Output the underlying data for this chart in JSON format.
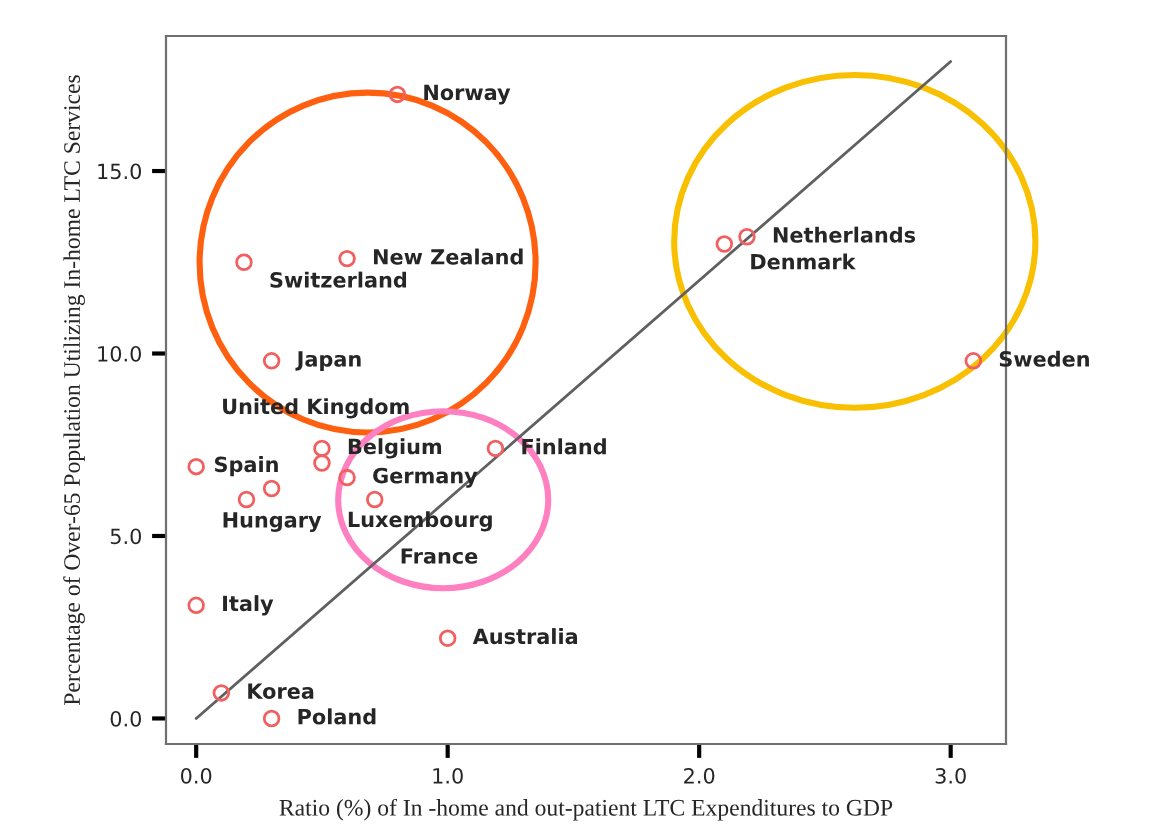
{
  "chart_data": {
    "type": "scatter",
    "xlabel": "Ratio (%) of In -home and out-patient LTC Expenditures to GDP",
    "ylabel": "Percentage of Over-65 Population Utilizing In-home LTC Services",
    "xlim": [
      -0.12,
      3.22
    ],
    "ylim": [
      -0.7,
      18.7
    ],
    "xticks": [
      {
        "value": 0,
        "label": "0.0"
      },
      {
        "value": 1,
        "label": "1.0"
      },
      {
        "value": 2,
        "label": "2.0"
      },
      {
        "value": 3,
        "label": "3.0"
      }
    ],
    "yticks": [
      {
        "value": 0,
        "label": "0.0"
      },
      {
        "value": 5,
        "label": "5.0"
      },
      {
        "value": 10,
        "label": "10.0"
      },
      {
        "value": 15,
        "label": "15.0"
      }
    ],
    "grid": false,
    "series": [
      {
        "marker": "circle",
        "color": "#f06060",
        "x": [
          0.8,
          0.19,
          0.6,
          0.3,
          2.19,
          2.1,
          3.09,
          0.5,
          1.19,
          0.0,
          0.5,
          0.3,
          0.2,
          0.6,
          0.71,
          0.0,
          1.0,
          0.1,
          0.3
        ],
        "values": [
          17.1,
          12.5,
          12.6,
          9.8,
          13.2,
          13.0,
          9.8,
          7.4,
          7.4,
          6.9,
          7.0,
          6.3,
          6.0,
          6.6,
          6.0,
          3.1,
          2.2,
          0.7,
          0.0
        ]
      },
      {
        "type": "line",
        "color": "#606060",
        "x": [
          0.0,
          3.0
        ],
        "values": [
          0.0,
          18.0
        ]
      }
    ],
    "annotations": [
      {
        "text": "Norway",
        "x": 0.8,
        "y": 17.1
      },
      {
        "text": "Switzerland",
        "x": 0.19,
        "y": 12.5
      },
      {
        "text": "New Zealand",
        "x": 0.6,
        "y": 12.6
      },
      {
        "text": "Japan",
        "x": 0.3,
        "y": 9.8
      },
      {
        "text": "Netherlands",
        "x": 2.19,
        "y": 13.2
      },
      {
        "text": "Denmark",
        "x": 2.1,
        "y": 13.0
      },
      {
        "text": "Sweden",
        "x": 3.09,
        "y": 9.8
      },
      {
        "text": "Belgium",
        "x": 0.5,
        "y": 7.4
      },
      {
        "text": "Finland",
        "x": 1.19,
        "y": 7.4
      },
      {
        "text": "United Kingdom",
        "x": 0.0,
        "y": 6.9
      },
      {
        "text": "Luxembourg",
        "x": 0.5,
        "y": 7.0
      },
      {
        "text": "Hungary",
        "x": 0.3,
        "y": 6.3
      },
      {
        "text": "Spain",
        "x": 0.2,
        "y": 6.0
      },
      {
        "text": "Germany",
        "x": 0.6,
        "y": 6.6
      },
      {
        "text": "France",
        "x": 0.71,
        "y": 6.0
      },
      {
        "text": "Italy",
        "x": 0.0,
        "y": 3.1
      },
      {
        "text": "Australia",
        "x": 1.0,
        "y": 2.2
      },
      {
        "text": "Korea",
        "x": 0.1,
        "y": 0.7
      },
      {
        "text": "Poland",
        "x": 0.3,
        "y": 0.0
      }
    ]
  }
}
